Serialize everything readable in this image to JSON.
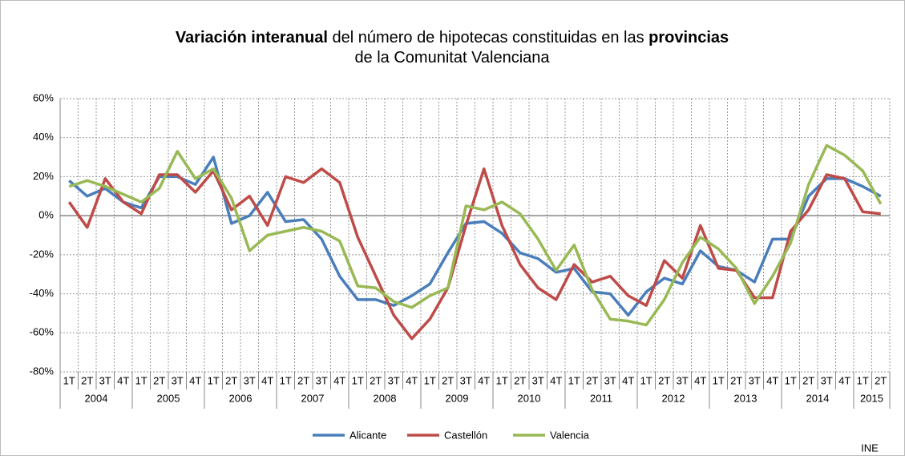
{
  "chart_data": {
    "type": "line",
    "title_lines": [
      [
        {
          "text": "Variación interanual",
          "bold": true
        },
        {
          "text": " del número de hipotecas constituidas en las ",
          "bold": false
        },
        {
          "text": "provincias",
          "bold": true
        }
      ],
      [
        {
          "text": "de la Comunitat Valenciana",
          "bold": false
        }
      ]
    ],
    "categories": [
      "1T",
      "2T",
      "3T",
      "4T",
      "1T",
      "2T",
      "3T",
      "4T",
      "1T",
      "2T",
      "3T",
      "4T",
      "1T",
      "2T",
      "3T",
      "4T",
      "1T",
      "2T",
      "3T",
      "4T",
      "1T",
      "2T",
      "3T",
      "4T",
      "1T",
      "2T",
      "3T",
      "4T",
      "1T",
      "2T",
      "3T",
      "4T",
      "1T",
      "2T",
      "3T",
      "4T",
      "1T",
      "2T",
      "3T",
      "4T",
      "1T",
      "2T",
      "3T",
      "4T",
      "1T",
      "2T"
    ],
    "years": [
      "2004",
      "2005",
      "2006",
      "2007",
      "2008",
      "2009",
      "2010",
      "2011",
      "2012",
      "2013",
      "2014",
      "2015"
    ],
    "series": [
      {
        "name": "Alicante",
        "color": "#4a7ebb",
        "values": [
          18,
          10,
          14,
          7,
          4,
          20,
          20,
          16,
          30,
          -4,
          0,
          12,
          -3,
          -2,
          -12,
          -31,
          -43,
          -43,
          -46,
          -41,
          -35,
          -19,
          -4,
          -3,
          -9,
          -19,
          -22,
          -29,
          -27,
          -39,
          -40,
          -51,
          -39,
          -32,
          -35,
          -18,
          -26,
          -28,
          -34,
          -12,
          -12,
          10,
          19,
          19,
          15,
          10
        ]
      },
      {
        "name": "Castellón",
        "color": "#be4b48",
        "values": [
          7,
          -6,
          19,
          7,
          1,
          21,
          21,
          12,
          23,
          3,
          10,
          -5,
          20,
          17,
          24,
          17,
          -11,
          -31,
          -51,
          -63,
          -53,
          -37,
          -5,
          24,
          -5,
          -25,
          -37,
          -43,
          -25,
          -34,
          -31,
          -41,
          -46,
          -23,
          -32,
          -5,
          -27,
          -28,
          -42,
          -42,
          -8,
          3,
          21,
          19,
          2,
          1
        ]
      },
      {
        "name": "Valencia",
        "color": "#98b954",
        "values": [
          15,
          18,
          15,
          11,
          7,
          14,
          33,
          19,
          24,
          9,
          -18,
          -10,
          -8,
          -6,
          -8,
          -13,
          -36,
          -37,
          -44,
          -47,
          -41,
          -37,
          5,
          3,
          7,
          1,
          -12,
          -28,
          -15,
          -38,
          -53,
          -54,
          -56,
          -43,
          -24,
          -11,
          -17,
          -27,
          -45,
          -31,
          -14,
          16,
          36,
          31,
          23,
          6
        ]
      }
    ],
    "ylim": [
      -80,
      60
    ],
    "yticks": [
      {
        "value": -80,
        "label": "-80%"
      },
      {
        "value": -60,
        "label": "-60%"
      },
      {
        "value": -40,
        "label": "-40%"
      },
      {
        "value": -20,
        "label": "-20%"
      },
      {
        "value": 0,
        "label": "0%"
      },
      {
        "value": 20,
        "label": "20%"
      },
      {
        "value": 40,
        "label": "40%"
      },
      {
        "value": 60,
        "label": "60%"
      }
    ],
    "grid": true,
    "legend": "bottom",
    "source": "INE"
  }
}
